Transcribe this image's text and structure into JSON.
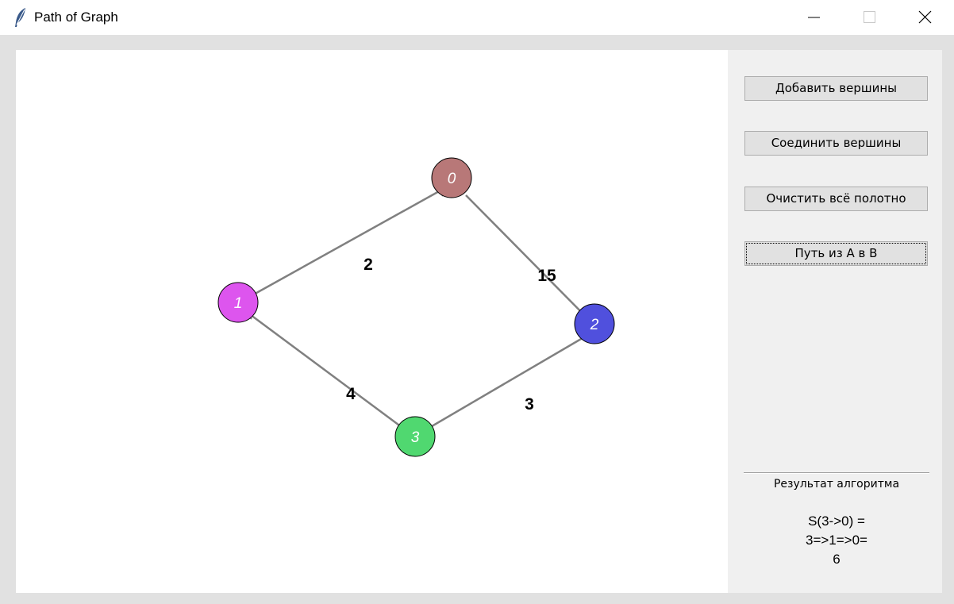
{
  "window": {
    "title": "Path of Graph",
    "app_icon": "feather-icon",
    "controls": [
      "minimize-icon",
      "maximize-icon",
      "close-icon"
    ]
  },
  "sidebar": {
    "buttons": [
      {
        "label": "Добавить вершины"
      },
      {
        "label": "Соединить вершины"
      },
      {
        "label": "Очистить всё полотно"
      },
      {
        "label": "Путь из А в В"
      }
    ],
    "result_heading": "Результат алгоритма",
    "result_lines": [
      "S(3->0) =",
      "3=>1=>0=",
      "6"
    ]
  },
  "graph": {
    "nodes": [
      {
        "label": "0",
        "color": "#b87878"
      },
      {
        "label": "1",
        "color": "#dd55ee"
      },
      {
        "label": "2",
        "color": "#5050dd"
      },
      {
        "label": "3",
        "color": "#50d870"
      }
    ],
    "edges": [
      {
        "from": "1",
        "to": "0",
        "weight": "2"
      },
      {
        "from": "0",
        "to": "2",
        "weight": "15"
      },
      {
        "from": "3",
        "to": "1",
        "weight": "4"
      },
      {
        "from": "3",
        "to": "2",
        "weight": "3"
      }
    ],
    "edge_color": "#808080"
  }
}
